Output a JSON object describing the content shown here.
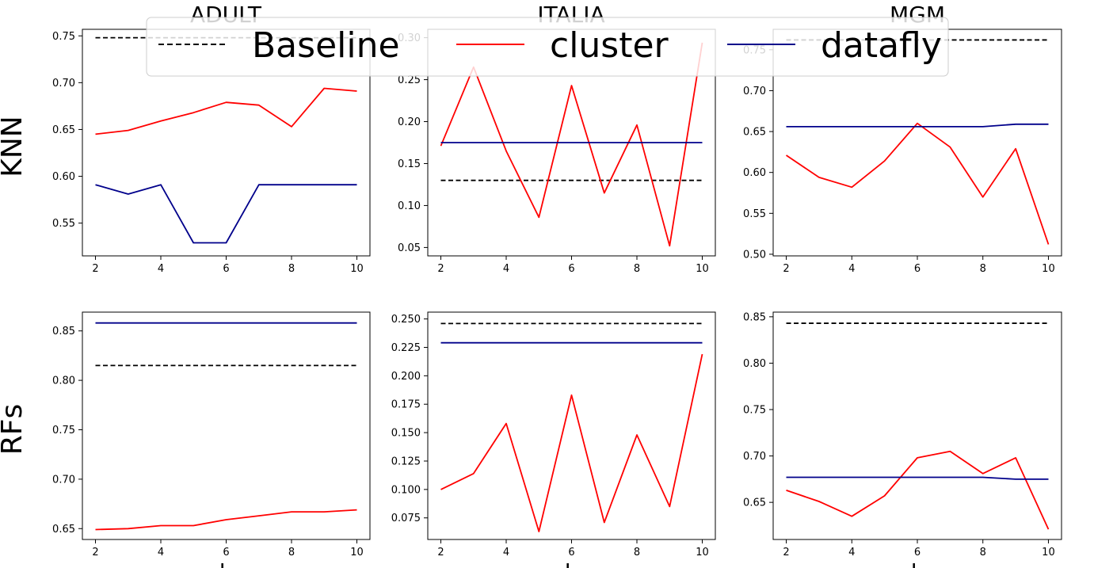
{
  "chart_data": [
    {
      "type": "line",
      "column": "ADULT",
      "row": "KNN",
      "x": [
        2,
        3,
        4,
        5,
        6,
        7,
        8,
        9,
        10
      ],
      "ylim": [
        0.515,
        0.757
      ],
      "yticks": [
        0.55,
        0.6,
        0.65,
        0.7,
        0.75
      ],
      "yfmt": 2,
      "baseline": 0.748,
      "series": [
        {
          "name": "cluster",
          "values": [
            0.645,
            0.649,
            0.659,
            0.668,
            0.679,
            0.676,
            0.653,
            0.694,
            0.691
          ]
        },
        {
          "name": "datafly",
          "values": [
            0.591,
            0.581,
            0.591,
            0.529,
            0.529,
            0.591,
            0.591,
            0.591,
            0.591
          ]
        }
      ]
    },
    {
      "type": "line",
      "column": "ITALIA",
      "row": "KNN",
      "x": [
        2,
        3,
        4,
        5,
        6,
        7,
        8,
        9,
        10
      ],
      "ylim": [
        0.04,
        0.31
      ],
      "yticks": [
        0.05,
        0.1,
        0.15,
        0.2,
        0.25,
        0.3
      ],
      "yfmt": 2,
      "baseline": 0.13,
      "series": [
        {
          "name": "cluster",
          "values": [
            0.171,
            0.265,
            0.165,
            0.086,
            0.243,
            0.115,
            0.196,
            0.052,
            0.294
          ]
        },
        {
          "name": "datafly",
          "values": [
            0.175,
            0.175,
            0.175,
            0.175,
            0.175,
            0.175,
            0.175,
            0.175,
            0.175
          ]
        }
      ]
    },
    {
      "type": "line",
      "column": "MGM",
      "row": "KNN",
      "x": [
        2,
        3,
        4,
        5,
        6,
        7,
        8,
        9,
        10
      ],
      "ylim": [
        0.498,
        0.775
      ],
      "yticks": [
        0.5,
        0.55,
        0.6,
        0.65,
        0.7,
        0.75
      ],
      "yfmt": 2,
      "baseline": 0.762,
      "series": [
        {
          "name": "cluster",
          "values": [
            0.621,
            0.594,
            0.582,
            0.614,
            0.66,
            0.631,
            0.57,
            0.629,
            0.512
          ]
        },
        {
          "name": "datafly",
          "values": [
            0.656,
            0.656,
            0.656,
            0.656,
            0.656,
            0.656,
            0.656,
            0.659,
            0.659
          ]
        }
      ]
    },
    {
      "type": "line",
      "column": "ADULT",
      "row": "RFs",
      "x": [
        2,
        3,
        4,
        5,
        6,
        7,
        8,
        9,
        10
      ],
      "ylim": [
        0.639,
        0.869
      ],
      "yticks": [
        0.65,
        0.7,
        0.75,
        0.8,
        0.85
      ],
      "yfmt": 2,
      "baseline": 0.815,
      "series": [
        {
          "name": "cluster",
          "values": [
            0.649,
            0.65,
            0.653,
            0.653,
            0.659,
            0.663,
            0.667,
            0.667,
            0.669
          ]
        },
        {
          "name": "datafly",
          "values": [
            0.858,
            0.858,
            0.858,
            0.858,
            0.858,
            0.858,
            0.858,
            0.858,
            0.858
          ]
        }
      ]
    },
    {
      "type": "line",
      "column": "ITALIA",
      "row": "RFs",
      "x": [
        2,
        3,
        4,
        5,
        6,
        7,
        8,
        9,
        10
      ],
      "ylim": [
        0.056,
        0.256
      ],
      "yticks": [
        0.075,
        0.1,
        0.125,
        0.15,
        0.175,
        0.2,
        0.225,
        0.25
      ],
      "yfmt": 3,
      "baseline": 0.246,
      "series": [
        {
          "name": "cluster",
          "values": [
            0.1,
            0.114,
            0.158,
            0.063,
            0.183,
            0.071,
            0.148,
            0.085,
            0.219
          ]
        },
        {
          "name": "datafly",
          "values": [
            0.229,
            0.229,
            0.229,
            0.229,
            0.229,
            0.229,
            0.229,
            0.229,
            0.229
          ]
        }
      ]
    },
    {
      "type": "line",
      "column": "MGM",
      "row": "RFs",
      "x": [
        2,
        3,
        4,
        5,
        6,
        7,
        8,
        9,
        10
      ],
      "ylim": [
        0.61,
        0.855
      ],
      "yticks": [
        0.65,
        0.7,
        0.75,
        0.8,
        0.85
      ],
      "yfmt": 2,
      "baseline": 0.843,
      "series": [
        {
          "name": "cluster",
          "values": [
            0.663,
            0.651,
            0.635,
            0.657,
            0.698,
            0.705,
            0.681,
            0.698,
            0.621
          ]
        },
        {
          "name": "datafly",
          "values": [
            0.677,
            0.677,
            0.677,
            0.677,
            0.677,
            0.677,
            0.677,
            0.675,
            0.675
          ]
        }
      ]
    }
  ],
  "xticks": [
    2,
    4,
    6,
    8,
    10
  ],
  "column_titles": [
    "ADULT",
    "ITALIA",
    "MGM"
  ],
  "row_labels": [
    "KNN",
    "RFs"
  ],
  "xlabel": "k",
  "legend": {
    "placement": "top-center",
    "entries": [
      {
        "label": "Baseline",
        "color": "#000000",
        "style": "dashed"
      },
      {
        "label": "cluster",
        "color": "#ff0000",
        "style": "solid"
      },
      {
        "label": "datafly",
        "color": "#00008b",
        "style": "solid"
      }
    ]
  },
  "colors": {
    "baseline": "#000000",
    "cluster": "#ff0000",
    "datafly": "#00008b"
  }
}
